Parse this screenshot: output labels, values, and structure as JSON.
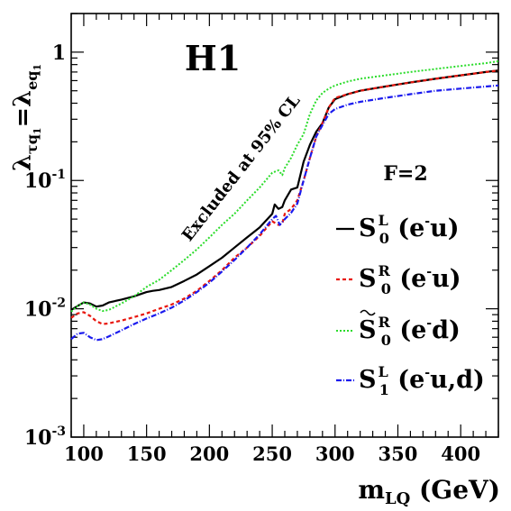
{
  "chart_data": {
    "type": "line",
    "y_scale": "log",
    "xlim": [
      90,
      430
    ],
    "ylim": [
      0.001,
      2.0
    ],
    "grid": false,
    "legend_placement": "right",
    "header_text": "H1",
    "annotation": "Excluded at 95% CL",
    "legend_header": "F=2",
    "xlabel": {
      "base": "m",
      "sub": "LQ",
      "tail": " (GeV)"
    },
    "ylabel": {
      "lhs": "λ",
      "lhs_sub": "τq",
      "lhs_subsub": "1",
      "eq": "=",
      "rhs": "λ",
      "rhs_sub": "eq",
      "rhs_subsub": "1"
    },
    "x_ticks": [
      100,
      150,
      200,
      250,
      300,
      350,
      400
    ],
    "y_ticks": [
      {
        "value": 1,
        "base": "1",
        "exp": ""
      },
      {
        "value": 0.1,
        "base": "10",
        "exp": "-1"
      },
      {
        "value": 0.01,
        "base": "10",
        "exp": "-2"
      },
      {
        "value": 0.001,
        "base": "10",
        "exp": "-3"
      }
    ],
    "series": [
      {
        "name": "S0L (e-u)",
        "label": {
          "sym": "S",
          "tilde": false,
          "sup": "L",
          "sub": "0",
          "args": "(e",
          "argsup": "-",
          "argtail": "u)"
        },
        "color": "#000000",
        "dash": "",
        "width": 2.2,
        "x": [
          90,
          95,
          100,
          105,
          110,
          115,
          120,
          130,
          140,
          150,
          155,
          160,
          170,
          180,
          190,
          200,
          210,
          220,
          230,
          240,
          250,
          252,
          255,
          258,
          260,
          265,
          270,
          275,
          280,
          285,
          290,
          295,
          300,
          310,
          320,
          330,
          340,
          350,
          360,
          380,
          400,
          420,
          430
        ],
        "y": [
          0.0098,
          0.0105,
          0.0112,
          0.011,
          0.0104,
          0.0106,
          0.0112,
          0.0118,
          0.0125,
          0.0135,
          0.0138,
          0.014,
          0.0148,
          0.0165,
          0.0185,
          0.0215,
          0.025,
          0.03,
          0.036,
          0.043,
          0.055,
          0.065,
          0.06,
          0.062,
          0.07,
          0.085,
          0.088,
          0.14,
          0.19,
          0.24,
          0.28,
          0.37,
          0.43,
          0.47,
          0.5,
          0.52,
          0.54,
          0.56,
          0.58,
          0.62,
          0.66,
          0.7,
          0.72
        ]
      },
      {
        "name": "S0R (e-u)",
        "label": {
          "sym": "S",
          "tilde": false,
          "sup": "R",
          "sub": "0",
          "args": "(e",
          "argsup": "-",
          "argtail": "u)"
        },
        "color": "#e8160d",
        "dash": "4,3",
        "width": 2.2,
        "x": [
          90,
          95,
          100,
          105,
          110,
          115,
          120,
          130,
          140,
          150,
          160,
          170,
          180,
          190,
          200,
          210,
          220,
          230,
          240,
          250,
          255,
          258,
          260,
          265,
          270,
          275,
          280,
          285,
          290,
          295,
          300,
          310,
          320,
          330,
          340,
          350,
          360,
          380,
          400,
          420,
          430
        ],
        "y": [
          0.0085,
          0.0092,
          0.0094,
          0.0088,
          0.008,
          0.0076,
          0.0077,
          0.0081,
          0.0086,
          0.0092,
          0.01,
          0.0108,
          0.012,
          0.0138,
          0.0165,
          0.02,
          0.025,
          0.03,
          0.037,
          0.048,
          0.045,
          0.046,
          0.055,
          0.06,
          0.07,
          0.1,
          0.15,
          0.22,
          0.28,
          0.37,
          0.44,
          0.47,
          0.5,
          0.52,
          0.54,
          0.56,
          0.58,
          0.62,
          0.66,
          0.7,
          0.72
        ]
      },
      {
        "name": "S~0R (e-d)",
        "label": {
          "sym": "S",
          "tilde": true,
          "sup": "R",
          "sub": "0",
          "args": "(e",
          "argsup": "-",
          "argtail": "d)"
        },
        "color": "#2bdc2b",
        "dash": "2,2",
        "width": 2.0,
        "x": [
          90,
          95,
          100,
          105,
          110,
          115,
          120,
          130,
          140,
          150,
          160,
          170,
          180,
          190,
          200,
          210,
          220,
          230,
          240,
          250,
          255,
          258,
          260,
          265,
          270,
          275,
          280,
          285,
          290,
          295,
          300,
          310,
          320,
          340,
          360,
          380,
          400,
          420,
          430
        ],
        "y": [
          0.0095,
          0.0105,
          0.0112,
          0.0108,
          0.01,
          0.0096,
          0.0098,
          0.011,
          0.0125,
          0.0148,
          0.0168,
          0.02,
          0.024,
          0.029,
          0.036,
          0.045,
          0.055,
          0.07,
          0.088,
          0.115,
          0.12,
          0.11,
          0.125,
          0.15,
          0.19,
          0.23,
          0.33,
          0.42,
          0.48,
          0.52,
          0.55,
          0.59,
          0.62,
          0.66,
          0.7,
          0.74,
          0.78,
          0.82,
          0.85
        ]
      },
      {
        "name": "S1L (e-u,d)",
        "label": {
          "sym": "S",
          "tilde": false,
          "sup": "L",
          "sub": "1",
          "args": "(e",
          "argsup": "-",
          "argtail": "u,d)"
        },
        "color": "#1a1aee",
        "dash": "6,2,1,2",
        "width": 2.2,
        "x": [
          90,
          95,
          100,
          105,
          110,
          115,
          120,
          130,
          140,
          150,
          160,
          170,
          180,
          190,
          200,
          210,
          220,
          230,
          240,
          250,
          253,
          256,
          260,
          265,
          270,
          275,
          280,
          285,
          290,
          295,
          300,
          310,
          320,
          340,
          360,
          380,
          400,
          420,
          430
        ],
        "y": [
          0.0058,
          0.0064,
          0.0065,
          0.006,
          0.0057,
          0.0058,
          0.0061,
          0.0068,
          0.0076,
          0.0084,
          0.0092,
          0.0102,
          0.0116,
          0.0135,
          0.016,
          0.0195,
          0.024,
          0.03,
          0.038,
          0.05,
          0.053,
          0.045,
          0.05,
          0.056,
          0.066,
          0.1,
          0.15,
          0.22,
          0.27,
          0.33,
          0.36,
          0.39,
          0.41,
          0.44,
          0.47,
          0.5,
          0.52,
          0.54,
          0.55
        ]
      }
    ]
  }
}
